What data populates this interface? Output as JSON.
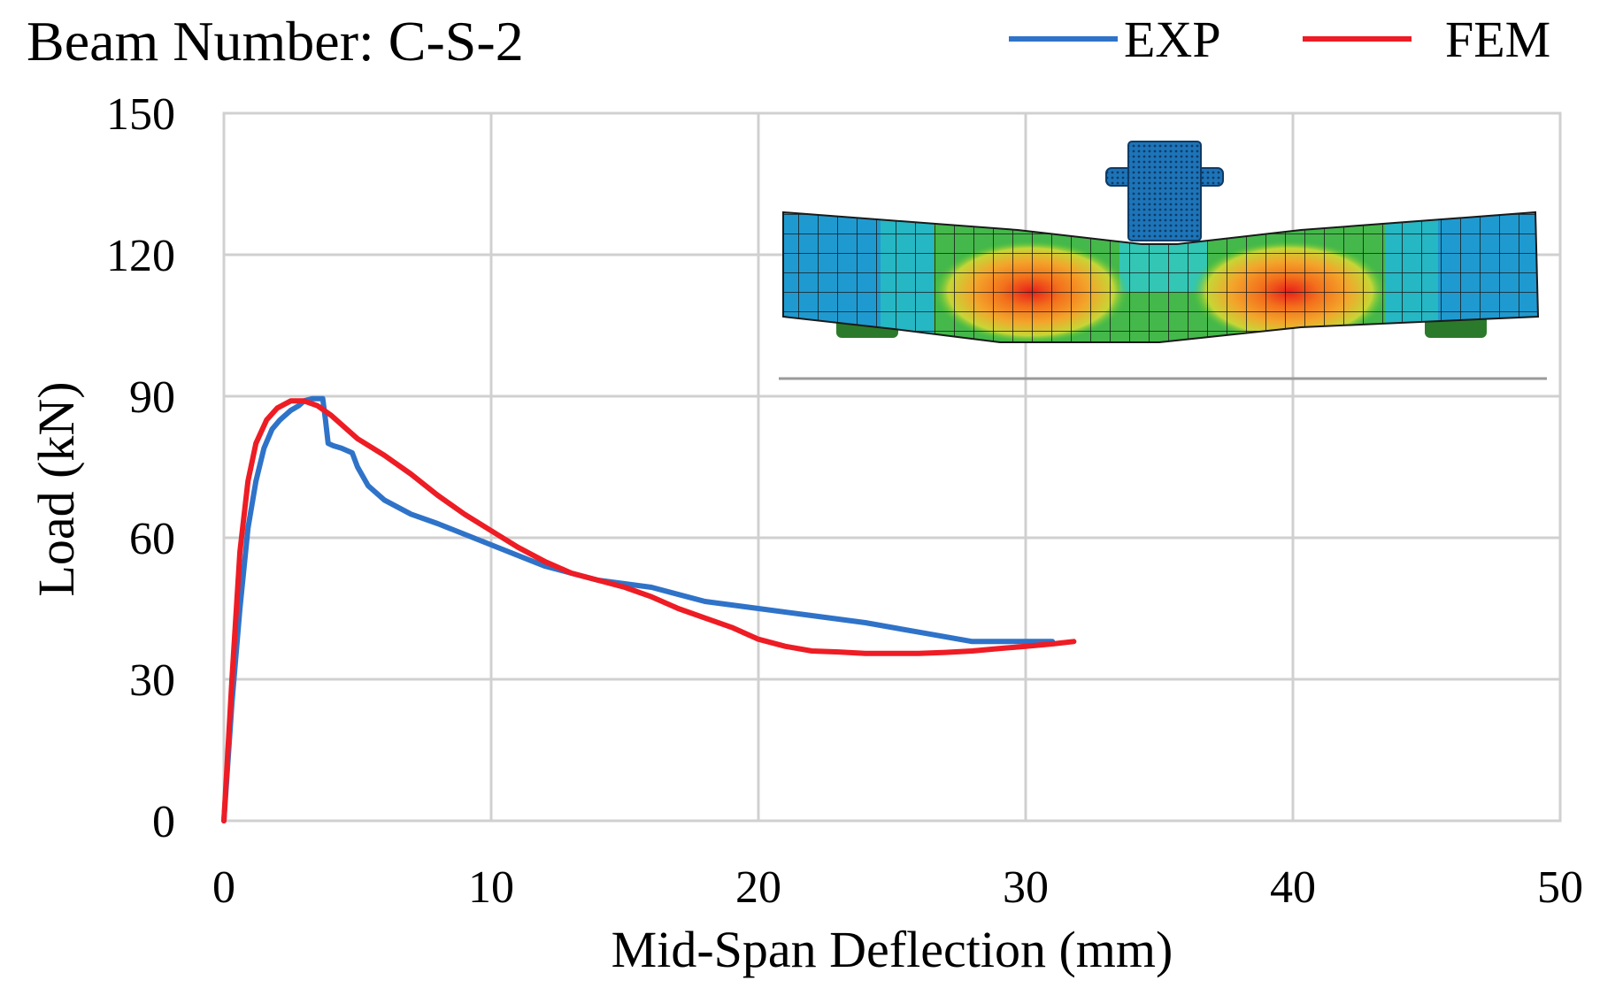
{
  "chart_data": {
    "type": "line",
    "title": "Beam Number: C-S-2",
    "xlabel": "Mid-Span Deflection (mm)",
    "ylabel": "Load (kN)",
    "xlim": [
      0,
      50
    ],
    "ylim": [
      0,
      150
    ],
    "xticks": [
      0,
      10,
      20,
      30,
      40,
      50
    ],
    "yticks": [
      0,
      30,
      60,
      90,
      120,
      150
    ],
    "grid": true,
    "legend": "top-right",
    "series": [
      {
        "name": "EXP",
        "color": "#2f73c9",
        "x": [
          0,
          0.3,
          0.6,
          0.9,
          1.2,
          1.5,
          1.8,
          2.1,
          2.5,
          2.8,
          3.0,
          3.3,
          3.5,
          3.7,
          3.8,
          3.9,
          4.1,
          4.4,
          4.8,
          5.0,
          5.4,
          6.0,
          7.0,
          8.0,
          10.0,
          12.0,
          14.0,
          16.0,
          18.0,
          20.0,
          22.0,
          24.0,
          26.0,
          28.0,
          30.0,
          31.0
        ],
        "y": [
          0,
          25,
          45,
          62,
          72,
          79,
          83,
          85,
          87,
          88,
          89,
          89.5,
          89.5,
          89.5,
          85,
          80,
          79.5,
          79,
          78,
          75,
          71,
          68,
          65,
          63,
          58.5,
          54,
          51,
          49.5,
          46.5,
          45,
          43.5,
          42,
          40,
          38,
          38,
          38
        ]
      },
      {
        "name": "FEM",
        "color": "#ee1c24",
        "x": [
          0,
          0.3,
          0.6,
          0.9,
          1.2,
          1.6,
          2.0,
          2.5,
          3.0,
          3.5,
          4.0,
          5.0,
          6.0,
          7.0,
          8.0,
          9.0,
          10.0,
          11.0,
          12.0,
          13.0,
          14.0,
          15.0,
          16.0,
          17.0,
          18.0,
          19.0,
          20.0,
          21.0,
          22.0,
          23.0,
          24.0,
          25.0,
          26.0,
          27.0,
          28.0,
          29.0,
          30.0,
          31.0,
          31.8
        ],
        "y": [
          0,
          30,
          57,
          72,
          80,
          85,
          87.5,
          89,
          89,
          88,
          86,
          81,
          77.5,
          73.5,
          69,
          65,
          61.5,
          58,
          55,
          52.5,
          51,
          49.5,
          47.5,
          45,
          43,
          41,
          38.5,
          37,
          36,
          35.8,
          35.5,
          35.5,
          35.5,
          35.7,
          36,
          36.5,
          37,
          37.5,
          38
        ]
      }
    ]
  },
  "legend": {
    "entries": [
      "EXP",
      "FEM"
    ]
  },
  "inset": {
    "description_icon": "beam-fem-contour-inset"
  }
}
